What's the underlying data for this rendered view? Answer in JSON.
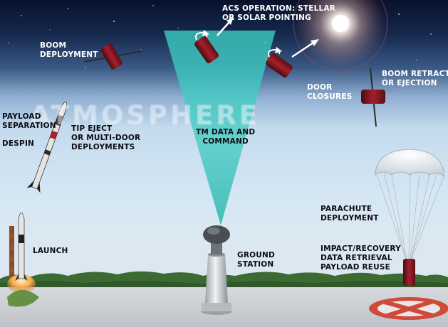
{
  "diagram": {
    "watermark": "ATMOSPHERE",
    "labels": {
      "boom_deployment": [
        "BOOM",
        "DEPLOYMENT"
      ],
      "acs_operation": [
        "ACS OPERATION: STELLAR",
        "OR SOLAR POINTING"
      ],
      "door_closures": [
        "DOOR",
        "CLOSURES"
      ],
      "boom_retraction": [
        "BOOM RETRACTION",
        "OR EJECTION"
      ],
      "payload_separation": [
        "PAYLOAD",
        "SEPARATION"
      ],
      "despin": [
        "DESPIN"
      ],
      "tip_eject": [
        "TIP EJECT",
        "OR MULTI-DOOR",
        "DEPLOYMENTS"
      ],
      "tm_data": [
        "TM DATA AND",
        "COMMAND"
      ],
      "parachute": [
        "PARACHUTE",
        "DEPLOYMENT"
      ],
      "impact": [
        "IMPACT/RECOVERY",
        "DATA RETRIEVAL",
        "PAYLOAD REUSE"
      ],
      "launch": [
        "LAUNCH"
      ],
      "ground_station": [
        "GROUND",
        "STATION"
      ]
    }
  }
}
